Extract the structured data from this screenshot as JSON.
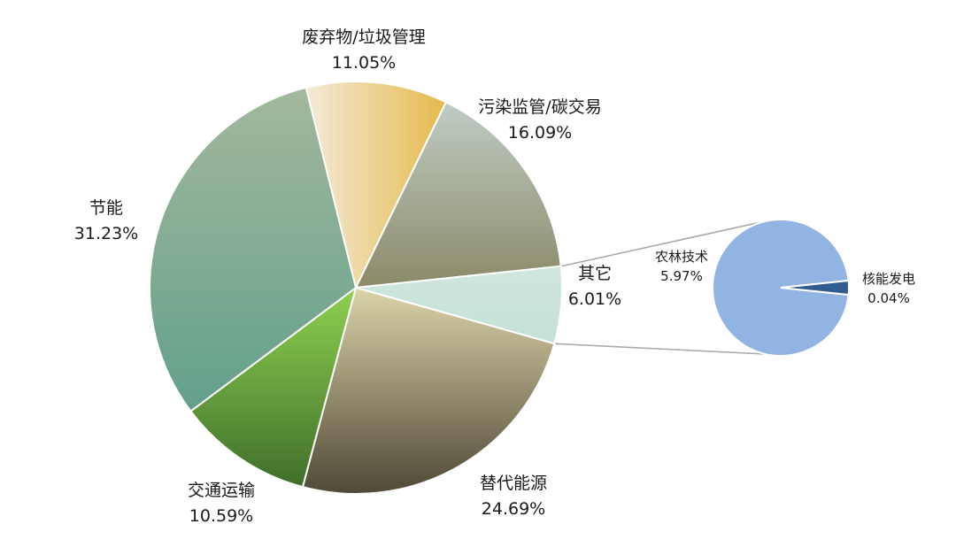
{
  "chart_data": {
    "type": "pie",
    "main": {
      "slices": [
        {
          "label": "废弃物/垃圾管理",
          "value": 11.05,
          "value_label": "11.05%",
          "gradient": [
            "#f3ead8",
            "#e5b94c"
          ],
          "gradient_dir": "horizontal"
        },
        {
          "label": "污染监管/碳交易",
          "value": 16.09,
          "value_label": "16.09%",
          "gradient": [
            "#bfccc4",
            "#8b8a68"
          ],
          "gradient_dir": "vertical"
        },
        {
          "label": "其它",
          "value": 6.01,
          "value_label": "6.01%",
          "gradient": [
            "#cfe6dd",
            "#c4e2d7"
          ],
          "gradient_dir": "vertical"
        },
        {
          "label": "替代能源",
          "value": 24.69,
          "value_label": "24.69%",
          "gradient": [
            "#dcd3a8",
            "#4f4936"
          ],
          "gradient_dir": "vertical"
        },
        {
          "label": "交通运输",
          "value": 10.59,
          "value_label": "10.59%",
          "gradient": [
            "#8ed150",
            "#3f6f2a"
          ],
          "gradient_dir": "vertical"
        },
        {
          "label": "节能",
          "value": 31.23,
          "value_label": "31.23%",
          "gradient": [
            "#a3b89e",
            "#62a08a"
          ],
          "gradient_dir": "vertical"
        }
      ]
    },
    "secondary": {
      "slices": [
        {
          "label": "农林技术",
          "value": 5.97,
          "value_label": "5.97%",
          "color": "#92b4e2"
        },
        {
          "label": "核能发电",
          "value": 0.04,
          "value_label": "0.04%",
          "color": "#325b8f"
        }
      ]
    },
    "link": {
      "from": "其它",
      "to": "secondary",
      "line_color": "#a9a9a9"
    }
  }
}
